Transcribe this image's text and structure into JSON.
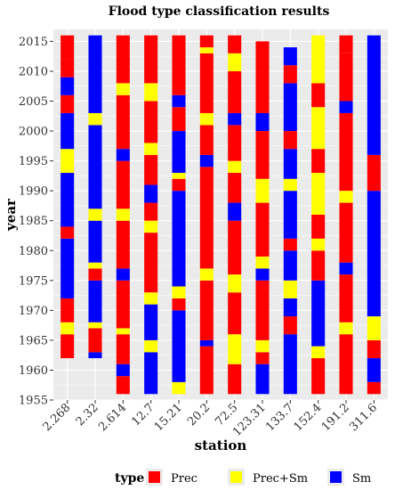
{
  "chart_data": {
    "type": "bar",
    "title": "Flood type classification results",
    "xlabel": "station",
    "ylabel": "year",
    "ylim": [
      1955,
      2017
    ],
    "y_ticks": [
      1955,
      1960,
      1965,
      1970,
      1975,
      1980,
      1985,
      1990,
      1995,
      2000,
      2005,
      2010,
      2015
    ],
    "categories": [
      "2.268",
      "2.32",
      "2.614",
      "12.7",
      "15.21",
      "20.2",
      "72.5",
      "123.31",
      "133.7",
      "152.4",
      "191.2",
      "311.6"
    ],
    "legend": {
      "title": "type",
      "position": "bottom",
      "entries": [
        {
          "name": "Prec",
          "color": "#ff0000"
        },
        {
          "name": "Prec+Sm",
          "color": "#ffff00"
        },
        {
          "name": "Sm",
          "color": "#0000ff"
        }
      ]
    },
    "panel_background": "#ebebeb",
    "grid": true,
    "series": [
      {
        "station": "2.268",
        "segments": [
          {
            "from": 1962,
            "to": 1966,
            "type": "Prec"
          },
          {
            "from": 1966,
            "to": 1968,
            "type": "Prec+Sm"
          },
          {
            "from": 1968,
            "to": 1972,
            "type": "Prec"
          },
          {
            "from": 1972,
            "to": 1982,
            "type": "Sm"
          },
          {
            "from": 1982,
            "to": 1984,
            "type": "Prec"
          },
          {
            "from": 1984,
            "to": 1993,
            "type": "Sm"
          },
          {
            "from": 1993,
            "to": 1997,
            "type": "Prec+Sm"
          },
          {
            "from": 1997,
            "to": 2003,
            "type": "Sm"
          },
          {
            "from": 2003,
            "to": 2006,
            "type": "Prec"
          },
          {
            "from": 2006,
            "to": 2009,
            "type": "Sm"
          },
          {
            "from": 2009,
            "to": 2012,
            "type": "Prec"
          },
          {
            "from": 2012,
            "to": 2016,
            "type": "Prec"
          }
        ]
      },
      {
        "station": "2.32",
        "segments": [
          {
            "from": 1962,
            "to": 1963,
            "type": "Sm"
          },
          {
            "from": 1963,
            "to": 1967,
            "type": "Prec"
          },
          {
            "from": 1967,
            "to": 1968,
            "type": "Prec+Sm"
          },
          {
            "from": 1968,
            "to": 1975,
            "type": "Sm"
          },
          {
            "from": 1975,
            "to": 1977,
            "type": "Prec"
          },
          {
            "from": 1977,
            "to": 1978,
            "type": "Prec+Sm"
          },
          {
            "from": 1978,
            "to": 1985,
            "type": "Sm"
          },
          {
            "from": 1985,
            "to": 1987,
            "type": "Prec+Sm"
          },
          {
            "from": 1987,
            "to": 2001,
            "type": "Sm"
          },
          {
            "from": 2001,
            "to": 2003,
            "type": "Prec+Sm"
          },
          {
            "from": 2003,
            "to": 2016,
            "type": "Sm"
          }
        ]
      },
      {
        "station": "2.614",
        "segments": [
          {
            "from": 1956,
            "to": 1959,
            "type": "Prec"
          },
          {
            "from": 1959,
            "to": 1961,
            "type": "Sm"
          },
          {
            "from": 1961,
            "to": 1966,
            "type": "Prec"
          },
          {
            "from": 1966,
            "to": 1967,
            "type": "Prec+Sm"
          },
          {
            "from": 1967,
            "to": 1975,
            "type": "Prec"
          },
          {
            "from": 1975,
            "to": 1977,
            "type": "Sm"
          },
          {
            "from": 1977,
            "to": 1985,
            "type": "Prec"
          },
          {
            "from": 1985,
            "to": 1987,
            "type": "Prec+Sm"
          },
          {
            "from": 1987,
            "to": 1995,
            "type": "Prec"
          },
          {
            "from": 1995,
            "to": 1997,
            "type": "Sm"
          },
          {
            "from": 1997,
            "to": 2006,
            "type": "Prec"
          },
          {
            "from": 2006,
            "to": 2008,
            "type": "Prec+Sm"
          },
          {
            "from": 2008,
            "to": 2016,
            "type": "Prec"
          }
        ]
      },
      {
        "station": "12.7",
        "segments": [
          {
            "from": 1956,
            "to": 1963,
            "type": "Sm"
          },
          {
            "from": 1963,
            "to": 1965,
            "type": "Prec+Sm"
          },
          {
            "from": 1965,
            "to": 1971,
            "type": "Sm"
          },
          {
            "from": 1971,
            "to": 1973,
            "type": "Prec+Sm"
          },
          {
            "from": 1973,
            "to": 1983,
            "type": "Prec"
          },
          {
            "from": 1983,
            "to": 1985,
            "type": "Prec+Sm"
          },
          {
            "from": 1985,
            "to": 1988,
            "type": "Prec"
          },
          {
            "from": 1988,
            "to": 1991,
            "type": "Sm"
          },
          {
            "from": 1991,
            "to": 1996,
            "type": "Prec"
          },
          {
            "from": 1996,
            "to": 1998,
            "type": "Prec+Sm"
          },
          {
            "from": 1998,
            "to": 2005,
            "type": "Prec"
          },
          {
            "from": 2005,
            "to": 2008,
            "type": "Prec+Sm"
          },
          {
            "from": 2008,
            "to": 2016,
            "type": "Prec"
          }
        ]
      },
      {
        "station": "15.21",
        "segments": [
          {
            "from": 1956,
            "to": 1958,
            "type": "Prec+Sm"
          },
          {
            "from": 1958,
            "to": 1970,
            "type": "Sm"
          },
          {
            "from": 1970,
            "to": 1972,
            "type": "Prec"
          },
          {
            "from": 1972,
            "to": 1974,
            "type": "Prec+Sm"
          },
          {
            "from": 1974,
            "to": 1990,
            "type": "Sm"
          },
          {
            "from": 1990,
            "to": 1992,
            "type": "Prec"
          },
          {
            "from": 1992,
            "to": 1993,
            "type": "Prec+Sm"
          },
          {
            "from": 1993,
            "to": 2000,
            "type": "Sm"
          },
          {
            "from": 2000,
            "to": 2004,
            "type": "Prec"
          },
          {
            "from": 2004,
            "to": 2006,
            "type": "Sm"
          },
          {
            "from": 2006,
            "to": 2016,
            "type": "Prec"
          }
        ]
      },
      {
        "station": "20.2",
        "segments": [
          {
            "from": 1956,
            "to": 1964,
            "type": "Prec"
          },
          {
            "from": 1964,
            "to": 1965,
            "type": "Sm"
          },
          {
            "from": 1965,
            "to": 1975,
            "type": "Prec"
          },
          {
            "from": 1975,
            "to": 1977,
            "type": "Prec+Sm"
          },
          {
            "from": 1977,
            "to": 1994,
            "type": "Prec"
          },
          {
            "from": 1994,
            "to": 1996,
            "type": "Sm"
          },
          {
            "from": 1996,
            "to": 2001,
            "type": "Prec"
          },
          {
            "from": 2001,
            "to": 2003,
            "type": "Prec+Sm"
          },
          {
            "from": 2003,
            "to": 2013,
            "type": "Prec"
          },
          {
            "from": 2013,
            "to": 2014,
            "type": "Prec+Sm"
          },
          {
            "from": 2014,
            "to": 2016,
            "type": "Prec"
          }
        ]
      },
      {
        "station": "72.5",
        "segments": [
          {
            "from": 1956,
            "to": 1961,
            "type": "Prec"
          },
          {
            "from": 1961,
            "to": 1966,
            "type": "Prec+Sm"
          },
          {
            "from": 1966,
            "to": 1973,
            "type": "Prec"
          },
          {
            "from": 1973,
            "to": 1976,
            "type": "Prec+Sm"
          },
          {
            "from": 1976,
            "to": 1985,
            "type": "Prec"
          },
          {
            "from": 1985,
            "to": 1988,
            "type": "Sm"
          },
          {
            "from": 1988,
            "to": 1993,
            "type": "Prec"
          },
          {
            "from": 1993,
            "to": 1995,
            "type": "Prec+Sm"
          },
          {
            "from": 1995,
            "to": 2001,
            "type": "Prec"
          },
          {
            "from": 2001,
            "to": 2003,
            "type": "Sm"
          },
          {
            "from": 2003,
            "to": 2010,
            "type": "Prec"
          },
          {
            "from": 2010,
            "to": 2013,
            "type": "Prec+Sm"
          },
          {
            "from": 2013,
            "to": 2016,
            "type": "Prec"
          }
        ]
      },
      {
        "station": "123.31",
        "segments": [
          {
            "from": 1956,
            "to": 1961,
            "type": "Sm"
          },
          {
            "from": 1961,
            "to": 1963,
            "type": "Prec"
          },
          {
            "from": 1963,
            "to": 1965,
            "type": "Prec+Sm"
          },
          {
            "from": 1965,
            "to": 1975,
            "type": "Prec"
          },
          {
            "from": 1975,
            "to": 1977,
            "type": "Sm"
          },
          {
            "from": 1977,
            "to": 1979,
            "type": "Prec+Sm"
          },
          {
            "from": 1979,
            "to": 1988,
            "type": "Prec"
          },
          {
            "from": 1988,
            "to": 1992,
            "type": "Prec+Sm"
          },
          {
            "from": 1992,
            "to": 2000,
            "type": "Prec"
          },
          {
            "from": 2000,
            "to": 2003,
            "type": "Sm"
          },
          {
            "from": 2003,
            "to": 2010,
            "type": "Prec"
          },
          {
            "from": 2010,
            "to": 2015,
            "type": "Prec"
          }
        ]
      },
      {
        "station": "133.7",
        "segments": [
          {
            "from": 1956,
            "to": 1966,
            "type": "Sm"
          },
          {
            "from": 1966,
            "to": 1969,
            "type": "Prec"
          },
          {
            "from": 1969,
            "to": 1972,
            "type": "Sm"
          },
          {
            "from": 1972,
            "to": 1975,
            "type": "Prec+Sm"
          },
          {
            "from": 1975,
            "to": 1980,
            "type": "Sm"
          },
          {
            "from": 1980,
            "to": 1982,
            "type": "Prec"
          },
          {
            "from": 1982,
            "to": 1990,
            "type": "Sm"
          },
          {
            "from": 1990,
            "to": 1992,
            "type": "Prec+Sm"
          },
          {
            "from": 1992,
            "to": 1997,
            "type": "Sm"
          },
          {
            "from": 1997,
            "to": 2000,
            "type": "Prec"
          },
          {
            "from": 2000,
            "to": 2008,
            "type": "Sm"
          },
          {
            "from": 2008,
            "to": 2011,
            "type": "Prec"
          },
          {
            "from": 2011,
            "to": 2014,
            "type": "Sm"
          }
        ]
      },
      {
        "station": "152.4",
        "segments": [
          {
            "from": 1956,
            "to": 1962,
            "type": "Prec"
          },
          {
            "from": 1962,
            "to": 1964,
            "type": "Prec+Sm"
          },
          {
            "from": 1964,
            "to": 1975,
            "type": "Sm"
          },
          {
            "from": 1975,
            "to": 1980,
            "type": "Prec"
          },
          {
            "from": 1980,
            "to": 1982,
            "type": "Prec+Sm"
          },
          {
            "from": 1982,
            "to": 1986,
            "type": "Prec"
          },
          {
            "from": 1986,
            "to": 1993,
            "type": "Prec+Sm"
          },
          {
            "from": 1993,
            "to": 1997,
            "type": "Prec"
          },
          {
            "from": 1997,
            "to": 2004,
            "type": "Prec+Sm"
          },
          {
            "from": 2004,
            "to": 2008,
            "type": "Prec"
          },
          {
            "from": 2008,
            "to": 2016,
            "type": "Prec+Sm"
          }
        ]
      },
      {
        "station": "191.2",
        "segments": [
          {
            "from": 1956,
            "to": 1966,
            "type": "Prec"
          },
          {
            "from": 1966,
            "to": 1968,
            "type": "Prec+Sm"
          },
          {
            "from": 1968,
            "to": 1976,
            "type": "Prec"
          },
          {
            "from": 1976,
            "to": 1978,
            "type": "Sm"
          },
          {
            "from": 1978,
            "to": 1988,
            "type": "Prec"
          },
          {
            "from": 1988,
            "to": 1990,
            "type": "Prec+Sm"
          },
          {
            "from": 1990,
            "to": 2003,
            "type": "Prec"
          },
          {
            "from": 2003,
            "to": 2005,
            "type": "Sm"
          },
          {
            "from": 2005,
            "to": 2013,
            "type": "Prec"
          },
          {
            "from": 2013,
            "to": 2016,
            "type": "Prec"
          }
        ]
      },
      {
        "station": "311.6",
        "segments": [
          {
            "from": 1956,
            "to": 1958,
            "type": "Prec"
          },
          {
            "from": 1958,
            "to": 1962,
            "type": "Sm"
          },
          {
            "from": 1962,
            "to": 1965,
            "type": "Prec"
          },
          {
            "from": 1965,
            "to": 1969,
            "type": "Prec+Sm"
          },
          {
            "from": 1969,
            "to": 1990,
            "type": "Sm"
          },
          {
            "from": 1990,
            "to": 1996,
            "type": "Prec"
          },
          {
            "from": 1996,
            "to": 2016,
            "type": "Sm"
          }
        ]
      }
    ]
  }
}
